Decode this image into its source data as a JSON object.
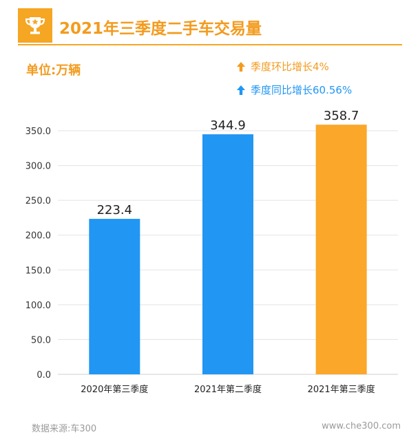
{
  "header": {
    "title": "2021年三季度二手车交易量",
    "badge_icon": "trophy-star-icon",
    "accent_color": "#F5A623"
  },
  "unit_label": "单位:万辆",
  "legend": {
    "qoq": {
      "text": "季度环比增长4%",
      "icon": "arrow-up-icon",
      "color": "#F39B1E"
    },
    "yoy": {
      "text": "季度同比增长60.56%",
      "icon": "arrow-up-icon",
      "color": "#2196F3"
    }
  },
  "chart_data": {
    "type": "bar",
    "categories": [
      "2020年第三季度",
      "2021年第二季度",
      "2021年第三季度"
    ],
    "values": [
      223.4,
      344.9,
      358.7
    ],
    "data_labels": [
      "223.4",
      "344.9",
      "358.7"
    ],
    "bar_colors": [
      "#2196F3",
      "#2196F3",
      "#FBA72A"
    ],
    "ylim": [
      0,
      350
    ],
    "yticks": [
      "0.0",
      "50.0",
      "100.0",
      "150.0",
      "200.0",
      "250.0",
      "300.0",
      "350.0"
    ],
    "ytick_values": [
      0,
      50,
      100,
      150,
      200,
      250,
      300,
      350
    ],
    "grid": true,
    "xlabel": "",
    "ylabel": "",
    "title": ""
  },
  "footer": {
    "source": "数据来源:车300",
    "website": "www.che300.com"
  }
}
